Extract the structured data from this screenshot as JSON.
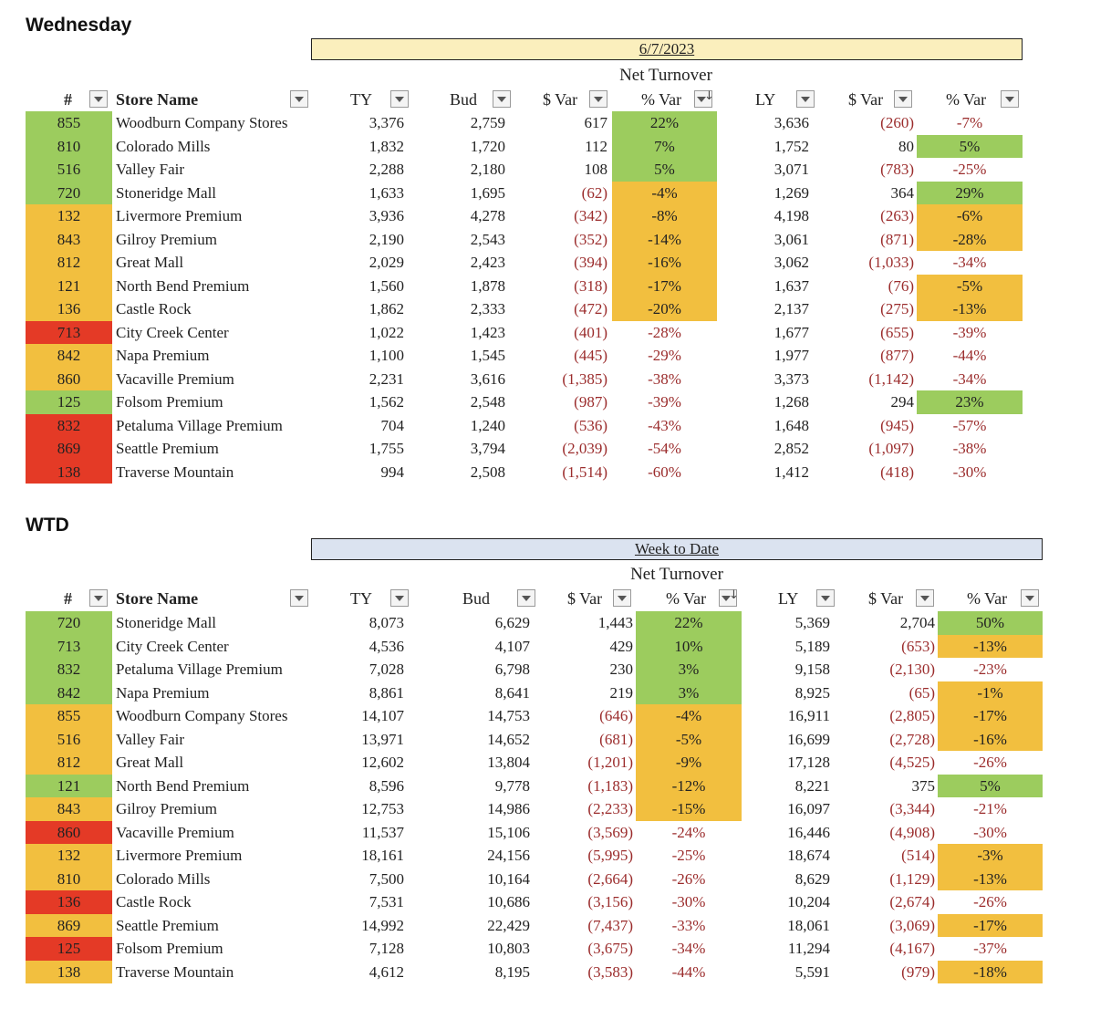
{
  "sections": [
    {
      "title": "Wednesday",
      "date_label": "6/7/2023",
      "metric_label": "Net Turnover",
      "headers": {
        "num": "#",
        "store": "Store Name",
        "ty": "TY",
        "bud": "Bud",
        "var_bud": "$ Var",
        "pct_bud": "% Var",
        "ly": "LY",
        "var_ly": "$ Var",
        "pct_ly": "% Var"
      },
      "rows": [
        {
          "num": "855",
          "store": "Woodburn Company Stores",
          "ty": "3,376",
          "bud": "2,759",
          "var_bud": "617",
          "pct_bud": "22%",
          "ly": "3,636",
          "var_ly": "(260)",
          "pct_ly": "-7%",
          "num_color": "green",
          "pct_bud_color": "green",
          "pct_ly_color": ""
        },
        {
          "num": "810",
          "store": "Colorado Mills",
          "ty": "1,832",
          "bud": "1,720",
          "var_bud": "112",
          "pct_bud": "7%",
          "ly": "1,752",
          "var_ly": "80",
          "pct_ly": "5%",
          "num_color": "green",
          "pct_bud_color": "green",
          "pct_ly_color": "green"
        },
        {
          "num": "516",
          "store": "Valley Fair",
          "ty": "2,288",
          "bud": "2,180",
          "var_bud": "108",
          "pct_bud": "5%",
          "ly": "3,071",
          "var_ly": "(783)",
          "pct_ly": "-25%",
          "num_color": "green",
          "pct_bud_color": "green",
          "pct_ly_color": ""
        },
        {
          "num": "720",
          "store": "Stoneridge Mall",
          "ty": "1,633",
          "bud": "1,695",
          "var_bud": "(62)",
          "pct_bud": "-4%",
          "ly": "1,269",
          "var_ly": "364",
          "pct_ly": "29%",
          "num_color": "green",
          "pct_bud_color": "orange",
          "pct_ly_color": "green"
        },
        {
          "num": "132",
          "store": "Livermore Premium",
          "ty": "3,936",
          "bud": "4,278",
          "var_bud": "(342)",
          "pct_bud": "-8%",
          "ly": "4,198",
          "var_ly": "(263)",
          "pct_ly": "-6%",
          "num_color": "orange",
          "pct_bud_color": "orange",
          "pct_ly_color": "orange"
        },
        {
          "num": "843",
          "store": "Gilroy Premium",
          "ty": "2,190",
          "bud": "2,543",
          "var_bud": "(352)",
          "pct_bud": "-14%",
          "ly": "3,061",
          "var_ly": "(871)",
          "pct_ly": "-28%",
          "num_color": "orange",
          "pct_bud_color": "orange",
          "pct_ly_color": "orange"
        },
        {
          "num": "812",
          "store": "Great Mall",
          "ty": "2,029",
          "bud": "2,423",
          "var_bud": "(394)",
          "pct_bud": "-16%",
          "ly": "3,062",
          "var_ly": "(1,033)",
          "pct_ly": "-34%",
          "num_color": "orange",
          "pct_bud_color": "orange",
          "pct_ly_color": ""
        },
        {
          "num": "121",
          "store": "North Bend Premium",
          "ty": "1,560",
          "bud": "1,878",
          "var_bud": "(318)",
          "pct_bud": "-17%",
          "ly": "1,637",
          "var_ly": "(76)",
          "pct_ly": "-5%",
          "num_color": "orange",
          "pct_bud_color": "orange",
          "pct_ly_color": "orange"
        },
        {
          "num": "136",
          "store": "Castle Rock",
          "ty": "1,862",
          "bud": "2,333",
          "var_bud": "(472)",
          "pct_bud": "-20%",
          "ly": "2,137",
          "var_ly": "(275)",
          "pct_ly": "-13%",
          "num_color": "orange",
          "pct_bud_color": "orange",
          "pct_ly_color": "orange"
        },
        {
          "num": "713",
          "store": "City Creek Center",
          "ty": "1,022",
          "bud": "1,423",
          "var_bud": "(401)",
          "pct_bud": "-28%",
          "ly": "1,677",
          "var_ly": "(655)",
          "pct_ly": "-39%",
          "num_color": "red",
          "pct_bud_color": "",
          "pct_ly_color": ""
        },
        {
          "num": "842",
          "store": "Napa Premium",
          "ty": "1,100",
          "bud": "1,545",
          "var_bud": "(445)",
          "pct_bud": "-29%",
          "ly": "1,977",
          "var_ly": "(877)",
          "pct_ly": "-44%",
          "num_color": "orange",
          "pct_bud_color": "",
          "pct_ly_color": ""
        },
        {
          "num": "860",
          "store": "Vacaville Premium",
          "ty": "2,231",
          "bud": "3,616",
          "var_bud": "(1,385)",
          "pct_bud": "-38%",
          "ly": "3,373",
          "var_ly": "(1,142)",
          "pct_ly": "-34%",
          "num_color": "orange",
          "pct_bud_color": "",
          "pct_ly_color": ""
        },
        {
          "num": "125",
          "store": "Folsom Premium",
          "ty": "1,562",
          "bud": "2,548",
          "var_bud": "(987)",
          "pct_bud": "-39%",
          "ly": "1,268",
          "var_ly": "294",
          "pct_ly": "23%",
          "num_color": "green",
          "pct_bud_color": "",
          "pct_ly_color": "green"
        },
        {
          "num": "832",
          "store": "Petaluma Village Premium",
          "ty": "704",
          "bud": "1,240",
          "var_bud": "(536)",
          "pct_bud": "-43%",
          "ly": "1,648",
          "var_ly": "(945)",
          "pct_ly": "-57%",
          "num_color": "red",
          "pct_bud_color": "",
          "pct_ly_color": ""
        },
        {
          "num": "869",
          "store": "Seattle Premium",
          "ty": "1,755",
          "bud": "3,794",
          "var_bud": "(2,039)",
          "pct_bud": "-54%",
          "ly": "2,852",
          "var_ly": "(1,097)",
          "pct_ly": "-38%",
          "num_color": "red",
          "pct_bud_color": "",
          "pct_ly_color": ""
        },
        {
          "num": "138",
          "store": "Traverse Mountain",
          "ty": "994",
          "bud": "2,508",
          "var_bud": "(1,514)",
          "pct_bud": "-60%",
          "ly": "1,412",
          "var_ly": "(418)",
          "pct_ly": "-30%",
          "num_color": "red",
          "pct_bud_color": "",
          "pct_ly_color": ""
        }
      ]
    },
    {
      "title": "WTD",
      "date_label": "Week to Date",
      "metric_label": "Net Turnover",
      "headers": {
        "num": "#",
        "store": "Store Name",
        "ty": "TY",
        "bud": "Bud",
        "var_bud": "$ Var",
        "pct_bud": "% Var",
        "ly": "LY",
        "var_ly": "$ Var",
        "pct_ly": "% Var"
      },
      "rows": [
        {
          "num": "720",
          "store": "Stoneridge Mall",
          "ty": "8,073",
          "bud": "6,629",
          "var_bud": "1,443",
          "pct_bud": "22%",
          "ly": "5,369",
          "var_ly": "2,704",
          "pct_ly": "50%",
          "num_color": "green",
          "pct_bud_color": "green",
          "pct_ly_color": "green"
        },
        {
          "num": "713",
          "store": "City Creek Center",
          "ty": "4,536",
          "bud": "4,107",
          "var_bud": "429",
          "pct_bud": "10%",
          "ly": "5,189",
          "var_ly": "(653)",
          "pct_ly": "-13%",
          "num_color": "green",
          "pct_bud_color": "green",
          "pct_ly_color": "orange"
        },
        {
          "num": "832",
          "store": "Petaluma Village Premium",
          "ty": "7,028",
          "bud": "6,798",
          "var_bud": "230",
          "pct_bud": "3%",
          "ly": "9,158",
          "var_ly": "(2,130)",
          "pct_ly": "-23%",
          "num_color": "green",
          "pct_bud_color": "green",
          "pct_ly_color": ""
        },
        {
          "num": "842",
          "store": "Napa Premium",
          "ty": "8,861",
          "bud": "8,641",
          "var_bud": "219",
          "pct_bud": "3%",
          "ly": "8,925",
          "var_ly": "(65)",
          "pct_ly": "-1%",
          "num_color": "green",
          "pct_bud_color": "green",
          "pct_ly_color": "orange"
        },
        {
          "num": "855",
          "store": "Woodburn Company Stores",
          "ty": "14,107",
          "bud": "14,753",
          "var_bud": "(646)",
          "pct_bud": "-4%",
          "ly": "16,911",
          "var_ly": "(2,805)",
          "pct_ly": "-17%",
          "num_color": "orange",
          "pct_bud_color": "orange",
          "pct_ly_color": "orange"
        },
        {
          "num": "516",
          "store": "Valley Fair",
          "ty": "13,971",
          "bud": "14,652",
          "var_bud": "(681)",
          "pct_bud": "-5%",
          "ly": "16,699",
          "var_ly": "(2,728)",
          "pct_ly": "-16%",
          "num_color": "orange",
          "pct_bud_color": "orange",
          "pct_ly_color": "orange"
        },
        {
          "num": "812",
          "store": "Great Mall",
          "ty": "12,602",
          "bud": "13,804",
          "var_bud": "(1,201)",
          "pct_bud": "-9%",
          "ly": "17,128",
          "var_ly": "(4,525)",
          "pct_ly": "-26%",
          "num_color": "orange",
          "pct_bud_color": "orange",
          "pct_ly_color": ""
        },
        {
          "num": "121",
          "store": "North Bend Premium",
          "ty": "8,596",
          "bud": "9,778",
          "var_bud": "(1,183)",
          "pct_bud": "-12%",
          "ly": "8,221",
          "var_ly": "375",
          "pct_ly": "5%",
          "num_color": "green",
          "pct_bud_color": "orange",
          "pct_ly_color": "green"
        },
        {
          "num": "843",
          "store": "Gilroy Premium",
          "ty": "12,753",
          "bud": "14,986",
          "var_bud": "(2,233)",
          "pct_bud": "-15%",
          "ly": "16,097",
          "var_ly": "(3,344)",
          "pct_ly": "-21%",
          "num_color": "orange",
          "pct_bud_color": "orange",
          "pct_ly_color": ""
        },
        {
          "num": "860",
          "store": "Vacaville Premium",
          "ty": "11,537",
          "bud": "15,106",
          "var_bud": "(3,569)",
          "pct_bud": "-24%",
          "ly": "16,446",
          "var_ly": "(4,908)",
          "pct_ly": "-30%",
          "num_color": "red",
          "pct_bud_color": "",
          "pct_ly_color": ""
        },
        {
          "num": "132",
          "store": "Livermore Premium",
          "ty": "18,161",
          "bud": "24,156",
          "var_bud": "(5,995)",
          "pct_bud": "-25%",
          "ly": "18,674",
          "var_ly": "(514)",
          "pct_ly": "-3%",
          "num_color": "orange",
          "pct_bud_color": "",
          "pct_ly_color": "orange"
        },
        {
          "num": "810",
          "store": "Colorado Mills",
          "ty": "7,500",
          "bud": "10,164",
          "var_bud": "(2,664)",
          "pct_bud": "-26%",
          "ly": "8,629",
          "var_ly": "(1,129)",
          "pct_ly": "-13%",
          "num_color": "orange",
          "pct_bud_color": "",
          "pct_ly_color": "orange"
        },
        {
          "num": "136",
          "store": "Castle Rock",
          "ty": "7,531",
          "bud": "10,686",
          "var_bud": "(3,156)",
          "pct_bud": "-30%",
          "ly": "10,204",
          "var_ly": "(2,674)",
          "pct_ly": "-26%",
          "num_color": "red",
          "pct_bud_color": "",
          "pct_ly_color": ""
        },
        {
          "num": "869",
          "store": "Seattle Premium",
          "ty": "14,992",
          "bud": "22,429",
          "var_bud": "(7,437)",
          "pct_bud": "-33%",
          "ly": "18,061",
          "var_ly": "(3,069)",
          "pct_ly": "-17%",
          "num_color": "orange",
          "pct_bud_color": "",
          "pct_ly_color": "orange"
        },
        {
          "num": "125",
          "store": "Folsom Premium",
          "ty": "7,128",
          "bud": "10,803",
          "var_bud": "(3,675)",
          "pct_bud": "-34%",
          "ly": "11,294",
          "var_ly": "(4,167)",
          "pct_ly": "-37%",
          "num_color": "red",
          "pct_bud_color": "",
          "pct_ly_color": ""
        },
        {
          "num": "138",
          "store": "Traverse Mountain",
          "ty": "4,612",
          "bud": "8,195",
          "var_bud": "(3,583)",
          "pct_bud": "-44%",
          "ly": "5,591",
          "var_ly": "(979)",
          "pct_ly": "-18%",
          "num_color": "orange",
          "pct_bud_color": "",
          "pct_ly_color": "orange"
        }
      ]
    }
  ]
}
